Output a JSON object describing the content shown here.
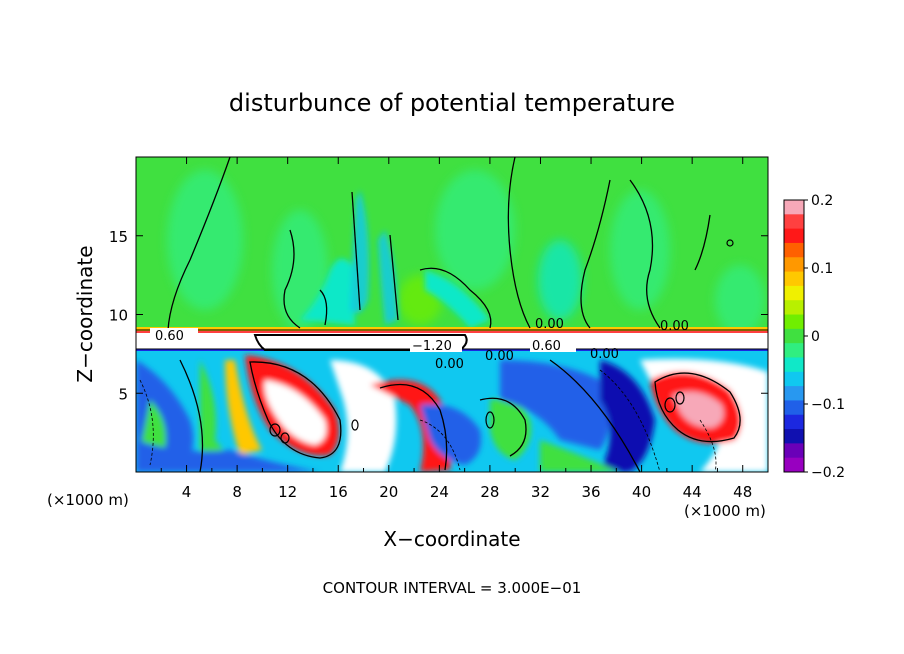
{
  "chart_data": {
    "type": "heatmap",
    "title": "disturbunce of potential temperature",
    "xlabel": "X−coordinate",
    "ylabel": "Z−coordinate",
    "x_unit": "(×1000 m)",
    "x_unit_right": "(×1000 m)",
    "xlim": [
      0,
      50
    ],
    "ylim": [
      0,
      20
    ],
    "x_ticks": [
      "4",
      "8",
      "12",
      "16",
      "20",
      "24",
      "28",
      "32",
      "36",
      "40",
      "44",
      "48"
    ],
    "y_ticks": [
      "5",
      "10",
      "15"
    ],
    "colorbar": {
      "range": [
        -0.2,
        0.2
      ],
      "tick_labels": [
        "0.2",
        "0.1",
        "0",
        "−0.1",
        "−0.2"
      ],
      "colors": [
        "#f7a8b8",
        "#ff4040",
        "#ff1818",
        "#ff6000",
        "#ff9800",
        "#ffc800",
        "#f0f000",
        "#b8f000",
        "#70ee00",
        "#40e040",
        "#30ee80",
        "#10e8c8",
        "#10c8f0",
        "#2898f0",
        "#2060e8",
        "#1c28e0",
        "#1010b0",
        "#6a00b8",
        "#9800c0"
      ]
    },
    "contour_labels": [
      "0.60",
      "−1.20",
      "0.00",
      "0.00",
      "0.60",
      "0.00",
      "0.00",
      "0.00"
    ],
    "footer": "CONTOUR INTERVAL = 3.000E−01"
  }
}
